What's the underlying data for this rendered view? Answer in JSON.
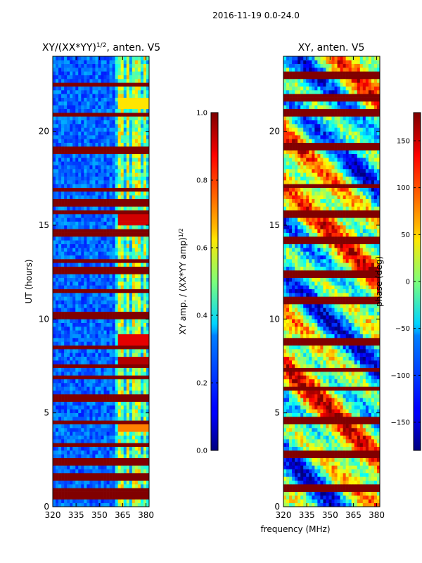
{
  "suptitle": "2016-11-19 0.0-24.0",
  "chart_data": [
    {
      "type": "heatmap",
      "title_main": "XY/(XX*YY)",
      "title_exp": "1/2",
      "title_suffix": ", anten. V5",
      "xlabel": "",
      "ylabel": "UT (hours)",
      "xlim": [
        320,
        382
      ],
      "ylim": [
        0,
        24
      ],
      "xticks": [
        320,
        335,
        350,
        365,
        380
      ],
      "yticks": [
        0,
        5,
        10,
        15,
        20
      ],
      "colorbar": {
        "label_main": "XY amp. / (XX*YY amp)",
        "label_exp": "1/2",
        "range": [
          0.0,
          1.0
        ],
        "ticks": [
          "0.0",
          "0.2",
          "0.4",
          "0.6",
          "0.8",
          "1.0"
        ],
        "colormap": "jet"
      },
      "flagged_hours": [
        0.6,
        0.9,
        1.6,
        2.4,
        3.3,
        4.5,
        5.8,
        6.9,
        7.5,
        8.5,
        10.2,
        11.5,
        12.6,
        13.1,
        14.6,
        15.7,
        16.2,
        16.9,
        19.0,
        20.9,
        22.5
      ],
      "bright_channels_mhz": [
        364,
        368,
        372,
        375,
        379
      ],
      "hot_spots": [
        {
          "hour": 8.9,
          "value": 0.9
        },
        {
          "hour": 7.7,
          "value": 0.95
        },
        {
          "hour": 15.3,
          "value": 0.92
        },
        {
          "hour": 4.3,
          "value": 0.75
        },
        {
          "hour": 19.0,
          "value": 0.8
        },
        {
          "hour": 21.5,
          "value": 0.65
        }
      ]
    },
    {
      "type": "heatmap",
      "title": "XY, anten. V5",
      "xlabel": "frequency (MHz)",
      "ylabel": "",
      "xlim": [
        320,
        382
      ],
      "ylim": [
        0,
        24
      ],
      "xticks": [
        320,
        335,
        350,
        365,
        380
      ],
      "yticks": [
        0,
        5,
        10,
        15,
        20
      ],
      "colorbar": {
        "label": "phase (deg)",
        "range": [
          -180,
          180
        ],
        "ticks": [
          "−150",
          "−100",
          "−50",
          "0",
          "50",
          "100",
          "150"
        ],
        "colormap": "jet"
      },
      "flagged_hours": [
        1.0,
        2.8,
        4.6,
        6.3,
        7.3,
        8.8,
        11.0,
        12.4,
        14.2,
        15.6,
        17.1,
        19.2,
        21.0,
        21.8,
        23.0
      ]
    }
  ]
}
